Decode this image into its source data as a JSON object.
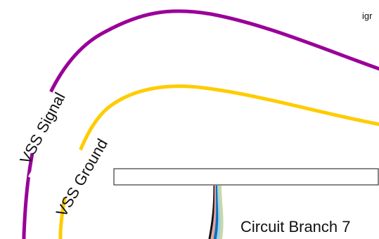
{
  "diagram": {
    "wires": [
      {
        "label": "VSS Signal",
        "color": "#990099"
      },
      {
        "label": "VSS Ground",
        "color": "#ffcc00"
      }
    ],
    "branch": {
      "label": "Circuit Branch 7",
      "bundle_colors": [
        "#111111",
        "#e8a0a0",
        "#0072bc",
        "#9ed0e8",
        "#c8d8a8"
      ]
    },
    "clipped_text": "igr"
  }
}
